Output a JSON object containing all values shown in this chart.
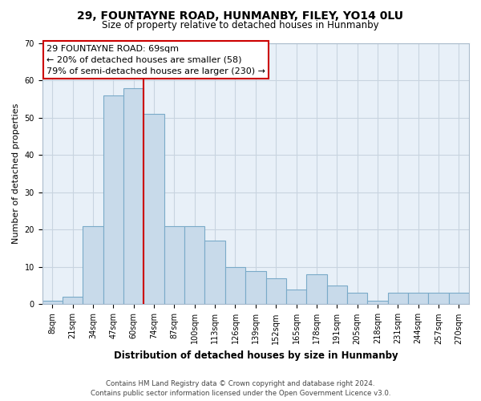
{
  "title": "29, FOUNTAYNE ROAD, HUNMANBY, FILEY, YO14 0LU",
  "subtitle": "Size of property relative to detached houses in Hunmanby",
  "xlabel": "Distribution of detached houses by size in Hunmanby",
  "ylabel": "Number of detached properties",
  "bar_labels": [
    "8sqm",
    "21sqm",
    "34sqm",
    "47sqm",
    "60sqm",
    "74sqm",
    "87sqm",
    "100sqm",
    "113sqm",
    "126sqm",
    "139sqm",
    "152sqm",
    "165sqm",
    "178sqm",
    "191sqm",
    "205sqm",
    "218sqm",
    "231sqm",
    "244sqm",
    "257sqm",
    "270sqm"
  ],
  "bar_values": [
    1,
    2,
    21,
    56,
    58,
    51,
    21,
    21,
    17,
    10,
    9,
    7,
    4,
    8,
    5,
    3,
    1,
    3,
    3,
    3,
    3
  ],
  "bar_color": "#c8daea",
  "bar_edge_color": "#7aaac8",
  "ylim": [
    0,
    70
  ],
  "yticks": [
    0,
    10,
    20,
    30,
    40,
    50,
    60,
    70
  ],
  "annotation_box_text_line1": "29 FOUNTAYNE ROAD: 69sqm",
  "annotation_box_text_line2": "← 20% of detached houses are smaller (58)",
  "annotation_box_text_line3": "79% of semi-detached houses are larger (230) →",
  "vline_color": "#cc0000",
  "footer_line1": "Contains HM Land Registry data © Crown copyright and database right 2024.",
  "footer_line2": "Contains public sector information licensed under the Open Government Licence v3.0.",
  "background_color": "#ffffff",
  "plot_bg_color": "#e8f0f8",
  "grid_color": "#c8d4e0",
  "title_fontsize": 10,
  "subtitle_fontsize": 8.5,
  "xlabel_fontsize": 8.5,
  "ylabel_fontsize": 8,
  "tick_fontsize": 7,
  "annot_fontsize": 8
}
